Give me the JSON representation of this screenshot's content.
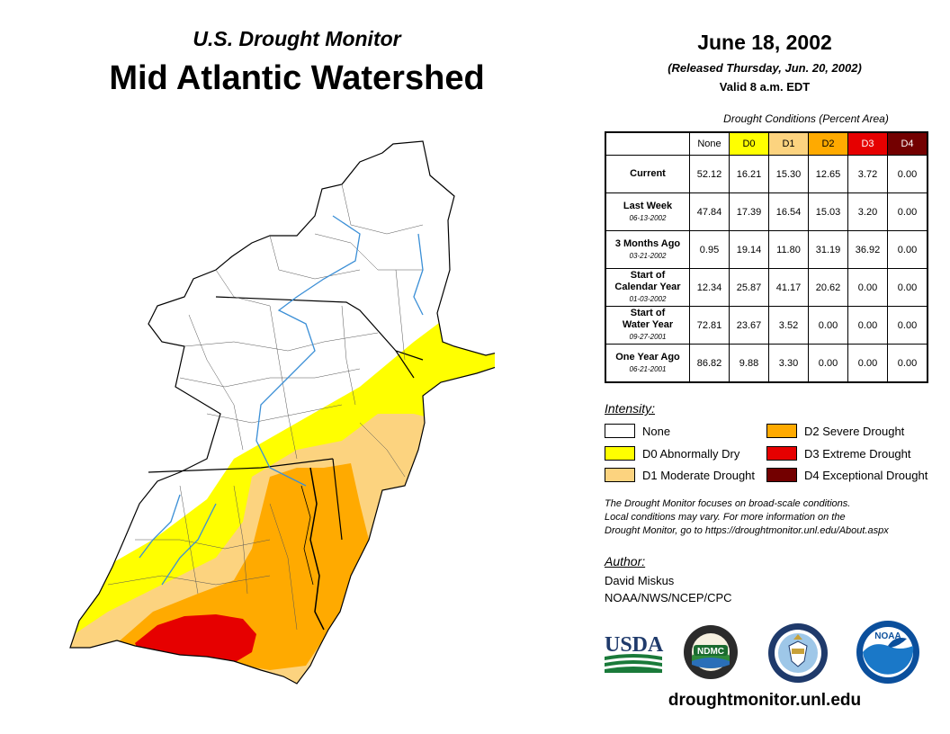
{
  "header": {
    "subtitle": "U.S. Drought Monitor",
    "title": "Mid Atlantic Watershed",
    "date": "June 18, 2002",
    "released": "(Released Thursday, Jun. 20, 2002)",
    "valid": "Valid 8 a.m. EDT"
  },
  "table": {
    "caption": "Drought Conditions (Percent Area)",
    "columns": [
      "None",
      "D0",
      "D1",
      "D2",
      "D3",
      "D4"
    ],
    "column_colors": [
      "#ffffff",
      "#ffff00",
      "#fcd37f",
      "#ffaa00",
      "#e60000",
      "#730000"
    ],
    "rows": [
      {
        "label": "Current",
        "label2": "",
        "date": "",
        "values": [
          "52.12",
          "16.21",
          "15.30",
          "12.65",
          "3.72",
          "0.00"
        ]
      },
      {
        "label": "Last Week",
        "label2": "",
        "date": "06-13-2002",
        "values": [
          "47.84",
          "17.39",
          "16.54",
          "15.03",
          "3.20",
          "0.00"
        ]
      },
      {
        "label": "3 Months Ago",
        "label2": "",
        "date": "03-21-2002",
        "values": [
          "0.95",
          "19.14",
          "11.80",
          "31.19",
          "36.92",
          "0.00"
        ]
      },
      {
        "label": "Start of",
        "label2": "Calendar Year",
        "date": "01-03-2002",
        "values": [
          "12.34",
          "25.87",
          "41.17",
          "20.62",
          "0.00",
          "0.00"
        ]
      },
      {
        "label": "Start of",
        "label2": "Water Year",
        "date": "09-27-2001",
        "values": [
          "72.81",
          "23.67",
          "3.52",
          "0.00",
          "0.00",
          "0.00"
        ]
      },
      {
        "label": "One Year Ago",
        "label2": "",
        "date": "06-21-2001",
        "values": [
          "86.82",
          "9.88",
          "3.30",
          "0.00",
          "0.00",
          "0.00"
        ]
      }
    ]
  },
  "legend": {
    "title": "Intensity:",
    "items": [
      {
        "label": "None",
        "color": "#ffffff"
      },
      {
        "label": "D0 Abnormally Dry",
        "color": "#ffff00"
      },
      {
        "label": "D1 Moderate Drought",
        "color": "#fcd37f"
      },
      {
        "label": "D2 Severe Drought",
        "color": "#ffaa00"
      },
      {
        "label": "D3 Extreme Drought",
        "color": "#e60000"
      },
      {
        "label": "D4 Exceptional Drought",
        "color": "#730000"
      }
    ]
  },
  "note": {
    "line1": "The Drought Monitor focuses on broad-scale conditions.",
    "line2": "Local conditions may vary. For more information on the",
    "line3": "Drought Monitor, go to https://droughtmonitor.unl.edu/About.aspx"
  },
  "author": {
    "title": "Author:",
    "name": "David Miskus",
    "org": "NOAA/NWS/NCEP/CPC"
  },
  "logos": {
    "usda": "USDA",
    "ndmc": "NDMC",
    "noaa": "NOAA"
  },
  "url": "droughtmonitor.unl.edu"
}
